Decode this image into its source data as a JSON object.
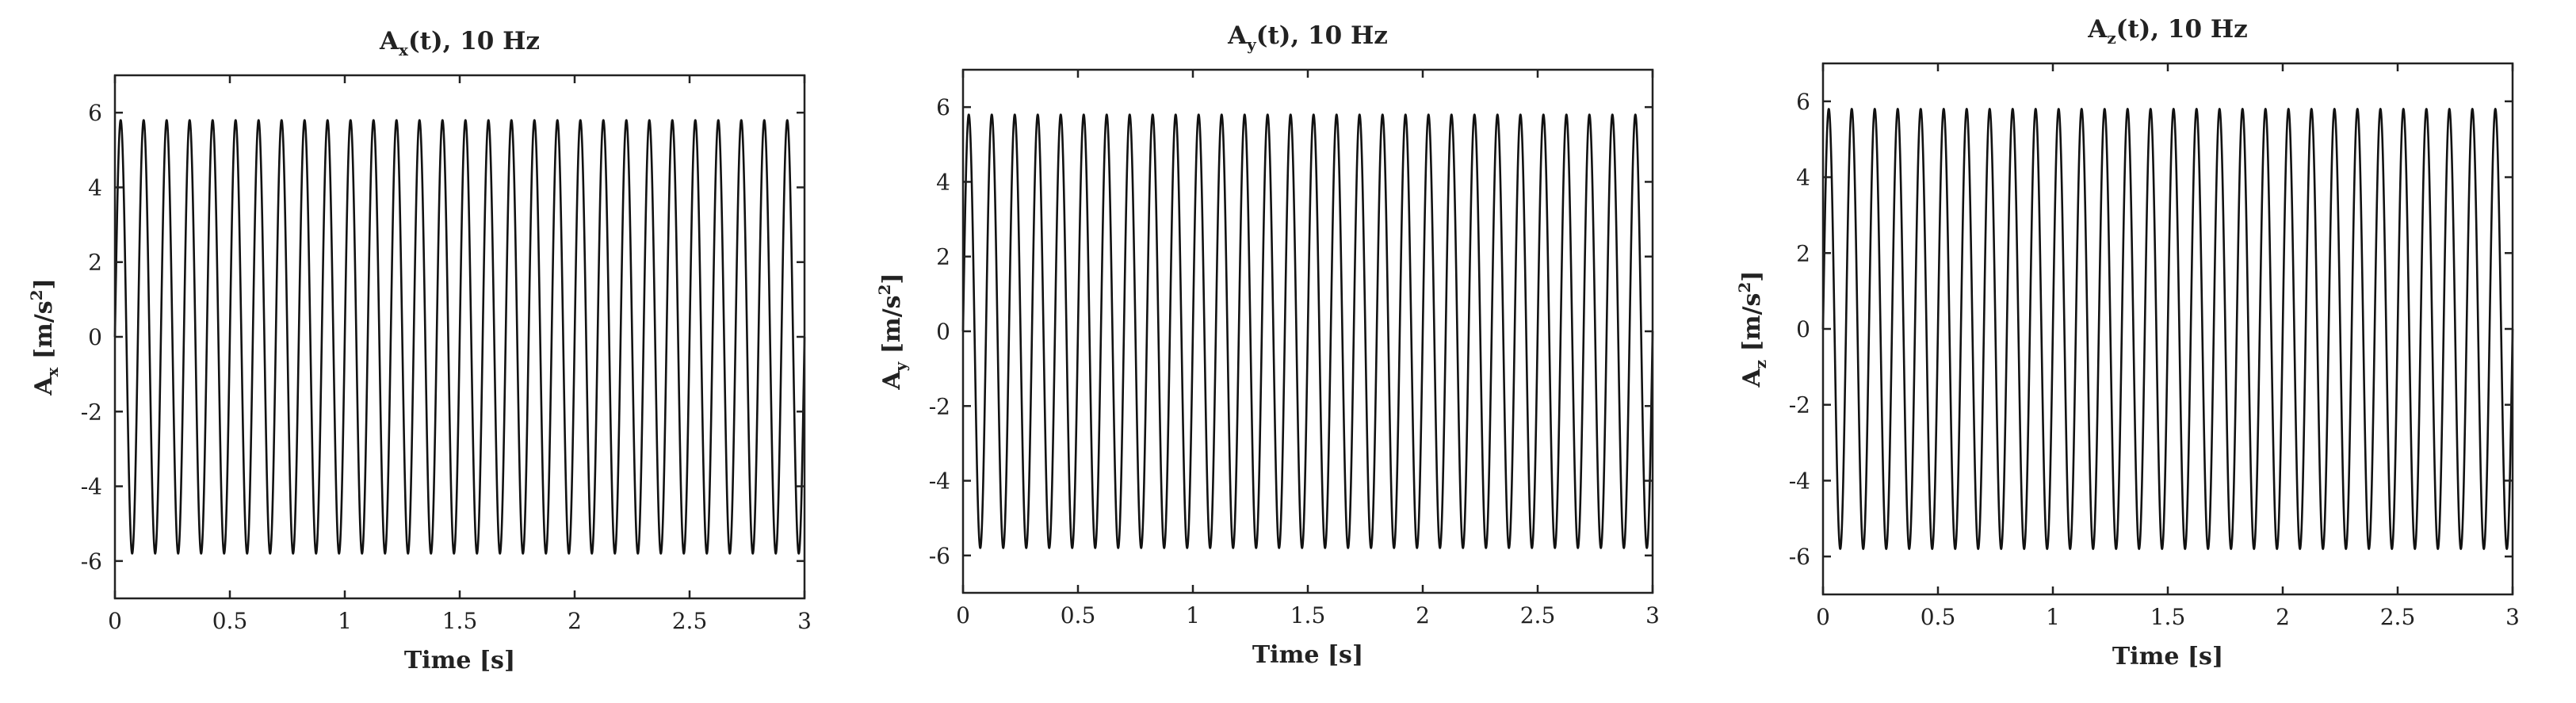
{
  "chart_data": [
    {
      "type": "line",
      "title": {
        "main": "A",
        "sub": "x",
        "rest": "(t), 10 Hz"
      },
      "xlabel": "Time [s]",
      "ylabel": {
        "main": "A",
        "sub": "x",
        "unit_open": " [m/s",
        "unit_sup": "2",
        "unit_close": "]"
      },
      "xlim": [
        0,
        3
      ],
      "ylim": [
        -7,
        7
      ],
      "xticks": [
        0,
        0.5,
        1,
        1.5,
        2,
        2.5,
        3
      ],
      "xtick_labels": [
        "0",
        "0.5",
        "1",
        "1.5",
        "2",
        "2.5",
        "3"
      ],
      "yticks": [
        -6,
        -4,
        -2,
        0,
        2,
        4,
        6
      ],
      "ytick_labels": [
        "-6",
        "-4",
        "-2",
        "0",
        "2",
        "4",
        "6"
      ],
      "series": [
        {
          "function": "sine",
          "amplitude": 5.8,
          "frequency_hz": 10,
          "x_start": 0,
          "x_end": 3,
          "color": "#111111"
        }
      ]
    },
    {
      "type": "line",
      "title": {
        "main": "A",
        "sub": "y",
        "rest": "(t), 10 Hz"
      },
      "xlabel": "Time [s]",
      "ylabel": {
        "main": "A",
        "sub": "y",
        "unit_open": " [m/s",
        "unit_sup": "2",
        "unit_close": "]"
      },
      "xlim": [
        0,
        3
      ],
      "ylim": [
        -7,
        7
      ],
      "xticks": [
        0,
        0.5,
        1,
        1.5,
        2,
        2.5,
        3
      ],
      "xtick_labels": [
        "0",
        "0.5",
        "1",
        "1.5",
        "2",
        "2.5",
        "3"
      ],
      "yticks": [
        -6,
        -4,
        -2,
        0,
        2,
        4,
        6
      ],
      "ytick_labels": [
        "-6",
        "-4",
        "-2",
        "0",
        "2",
        "4",
        "6"
      ],
      "series": [
        {
          "function": "sine",
          "amplitude": 5.8,
          "frequency_hz": 10,
          "x_start": 0,
          "x_end": 3,
          "color": "#111111"
        }
      ]
    },
    {
      "type": "line",
      "title": {
        "main": "A",
        "sub": "z",
        "rest": "(t), 10 Hz"
      },
      "xlabel": "Time [s]",
      "ylabel": {
        "main": "A",
        "sub": "z",
        "unit_open": " [m/s",
        "unit_sup": "2",
        "unit_close": "]"
      },
      "xlim": [
        0,
        3
      ],
      "ylim": [
        -7,
        7
      ],
      "xticks": [
        0,
        0.5,
        1,
        1.5,
        2,
        2.5,
        3
      ],
      "xtick_labels": [
        "0",
        "0.5",
        "1",
        "1.5",
        "2",
        "2.5",
        "3"
      ],
      "yticks": [
        -6,
        -4,
        -2,
        0,
        2,
        4,
        6
      ],
      "ytick_labels": [
        "-6",
        "-4",
        "-2",
        "0",
        "2",
        "4",
        "6"
      ],
      "series": [
        {
          "function": "sine",
          "amplitude": 5.8,
          "frequency_hz": 10,
          "x_start": 0,
          "x_end": 3,
          "color": "#111111"
        }
      ]
    }
  ]
}
